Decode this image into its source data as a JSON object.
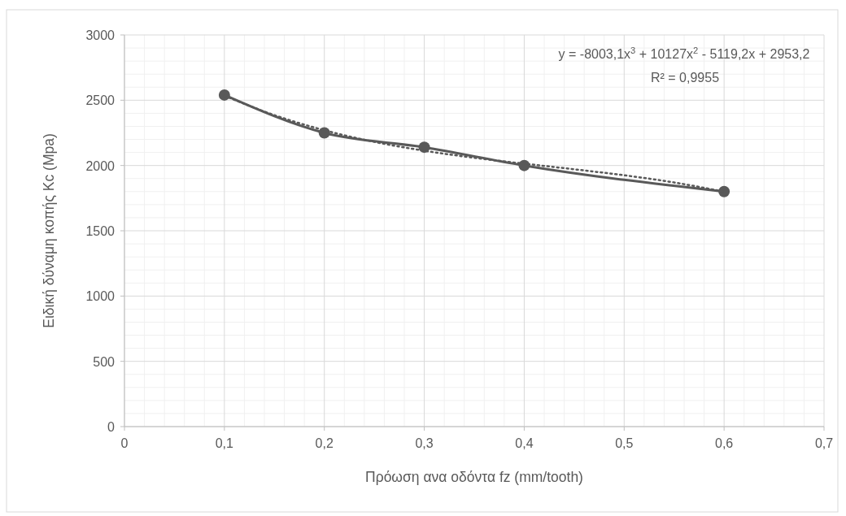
{
  "chart_data": {
    "type": "line",
    "xlabel": "Πρόωση ανα οδόντα fz (mm/tooth)",
    "ylabel": "Ειδική δύναμη κοπής Kc (Mpa)",
    "x": [
      0.1,
      0.2,
      0.3,
      0.4,
      0.6
    ],
    "series": [
      {
        "color": "#595959",
        "values": [
          2540,
          2250,
          2140,
          2000,
          1800
        ],
        "marker": "circle",
        "line_style": "solid"
      },
      {
        "color": "#595959",
        "x": [
          0.1,
          0.15,
          0.2,
          0.25,
          0.3,
          0.35,
          0.4,
          0.45,
          0.5,
          0.55,
          0.6
        ],
        "values": [
          2534,
          2386,
          2270,
          2181,
          2113,
          2059,
          2014,
          1971,
          1925,
          1870,
          1799
        ],
        "marker": "none",
        "line_style": "dotted"
      }
    ],
    "xlim": [
      0,
      0.7
    ],
    "xticks": [
      {
        "value": 0,
        "label": "0"
      },
      {
        "value": 0.1,
        "label": "0,1"
      },
      {
        "value": 0.2,
        "label": "0,2"
      },
      {
        "value": 0.3,
        "label": "0,3"
      },
      {
        "value": 0.4,
        "label": "0,4"
      },
      {
        "value": 0.5,
        "label": "0,5"
      },
      {
        "value": 0.6,
        "label": "0,6"
      },
      {
        "value": 0.7,
        "label": "0,7"
      }
    ],
    "ylim": [
      0,
      3000
    ],
    "yticks": [
      0,
      500,
      1000,
      1500,
      2000,
      2500,
      3000
    ],
    "grid": true,
    "annotations": [
      "y = -8003,1x$^{3}$ + 10127x$^{2}$ - 5119,2x + 2953,2",
      "R² = 0,9955"
    ]
  }
}
